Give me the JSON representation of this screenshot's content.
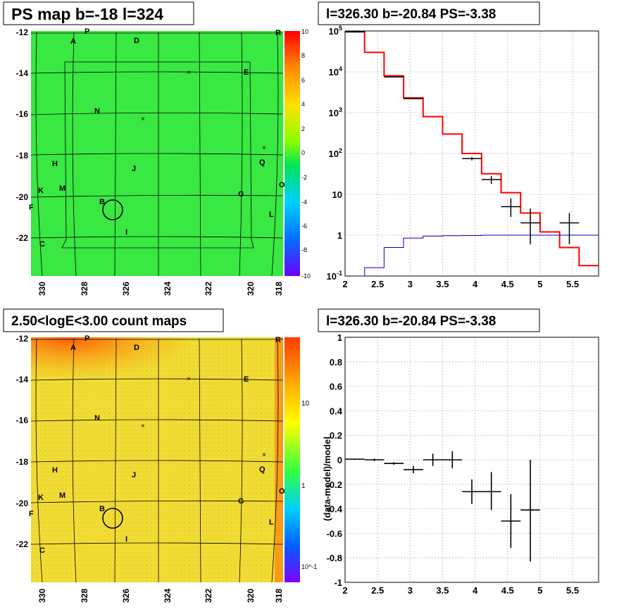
{
  "panels": {
    "top_left_title": "PS map b=-18 l=324",
    "top_right_title": "l=326.30 b=-20.84 PS=-3.38",
    "bottom_left_title": "2.50<logE<3.00 count maps",
    "bottom_right_title": "l=326.30 b=-20.84 PS=-3.38"
  },
  "map": {
    "y_ticks": [
      "-12",
      "-14",
      "-16",
      "-18",
      "-20",
      "-22"
    ],
    "x_ticks": [
      "330",
      "328",
      "326",
      "324",
      "322",
      "320",
      "318"
    ],
    "letters": [
      "A",
      "P",
      "D",
      "R",
      "E",
      "N",
      "H",
      "J",
      "Q",
      "K",
      "M",
      "O",
      "F",
      "B",
      "G",
      "L",
      "I",
      "C"
    ],
    "ps_colorbar_ticks": [
      "10",
      "8",
      "6",
      "4",
      "2",
      "0",
      "-2",
      "-4",
      "-6",
      "-8",
      "-10"
    ],
    "count_colorbar_ticks": [
      "10",
      "1",
      "10^-1"
    ]
  },
  "colors": {
    "ps_map_bg": "#2ee63a",
    "count_map_bg": "#e8e03a",
    "data_hist": "#ff0000",
    "model_hist": "#0000cc"
  },
  "chart_data": [
    {
      "type": "line",
      "title": "l=326.30 b=-20.84 PS=-3.38",
      "xlim": [
        2,
        5.9
      ],
      "ylim": [
        0.1,
        100000
      ],
      "yscale": "log",
      "xticks": [
        "2",
        "2.5",
        "3",
        "3.5",
        "4",
        "4.5",
        "5",
        "5.5"
      ],
      "yticks": [
        "10^-1",
        "1",
        "10",
        "10^2",
        "10^3",
        "10^4",
        "10^5"
      ],
      "grid": true,
      "series": [
        {
          "color": "#ff0000",
          "step_edges": [
            2.0,
            2.3,
            2.6,
            2.9,
            3.2,
            3.5,
            3.8,
            4.1,
            4.4,
            4.7,
            5.0,
            5.3,
            5.6,
            5.9
          ],
          "values": [
            95000,
            30000,
            8000,
            2300,
            800,
            300,
            100,
            32,
            11,
            3.5,
            1.2,
            0.5,
            0.18
          ]
        },
        {
          "color": "#0000cc",
          "step_edges": [
            2.0,
            2.3,
            2.6,
            2.9,
            3.2,
            3.5,
            3.8,
            4.1,
            4.4,
            4.7,
            5.0,
            5.3,
            5.6,
            5.9
          ],
          "values": [
            0.1,
            0.16,
            0.5,
            0.85,
            0.95,
            0.97,
            0.98,
            1.0,
            1.0,
            1.0,
            1.0,
            1.0,
            1.0
          ]
        },
        {
          "color": "#000000",
          "points": [
            {
              "x": 2.15,
              "y": 95000,
              "xerr": 0.15,
              "ylo": 95000,
              "yhi": 95000
            },
            {
              "x": 2.75,
              "y": 7500,
              "xerr": 0.15,
              "ylo": 7500,
              "yhi": 7500
            },
            {
              "x": 3.05,
              "y": 2200,
              "xerr": 0.15,
              "ylo": 2200,
              "yhi": 2200
            },
            {
              "x": 3.95,
              "y": 75,
              "xerr": 0.15,
              "ylo": 68,
              "yhi": 82
            },
            {
              "x": 4.25,
              "y": 23,
              "xerr": 0.15,
              "ylo": 18,
              "yhi": 28
            },
            {
              "x": 4.55,
              "y": 5,
              "xerr": 0.15,
              "ylo": 2.8,
              "yhi": 8
            },
            {
              "x": 4.85,
              "y": 2,
              "xerr": 0.15,
              "ylo": 0.6,
              "yhi": 4.5
            },
            {
              "x": 5.45,
              "y": 2,
              "xerr": 0.15,
              "ylo": 0.6,
              "yhi": 3.5
            }
          ]
        }
      ]
    },
    {
      "type": "scatter",
      "title": "l=326.30 b=-20.84 PS=-3.38",
      "ylabel": "(data-model)/model",
      "xlim": [
        2,
        5.9
      ],
      "ylim": [
        -1,
        1
      ],
      "xticks": [
        "2",
        "2.5",
        "3",
        "3.5",
        "4",
        "4.5",
        "5",
        "5.5"
      ],
      "yticks": [
        "1",
        "0.8",
        "0.6",
        "0.4",
        "0.2",
        "0",
        "-0.2",
        "-0.4",
        "-0.6",
        "-0.8",
        "-1"
      ],
      "grid": true,
      "points": [
        {
          "x": 2.15,
          "y": 0.005,
          "xerr": 0.15,
          "ylo": 0.0,
          "yhi": 0.01
        },
        {
          "x": 2.45,
          "y": 0.0,
          "xerr": 0.15,
          "ylo": -0.01,
          "yhi": 0.01
        },
        {
          "x": 2.75,
          "y": -0.03,
          "xerr": 0.15,
          "ylo": -0.04,
          "yhi": -0.02
        },
        {
          "x": 3.05,
          "y": -0.08,
          "xerr": 0.15,
          "ylo": -0.11,
          "yhi": -0.05
        },
        {
          "x": 3.35,
          "y": 0.0,
          "xerr": 0.15,
          "ylo": -0.05,
          "yhi": 0.05
        },
        {
          "x": 3.65,
          "y": 0.0,
          "xerr": 0.15,
          "ylo": -0.07,
          "yhi": 0.07
        },
        {
          "x": 3.95,
          "y": -0.26,
          "xerr": 0.15,
          "ylo": -0.36,
          "yhi": -0.16
        },
        {
          "x": 4.25,
          "y": -0.26,
          "xerr": 0.15,
          "ylo": -0.41,
          "yhi": -0.1
        },
        {
          "x": 4.55,
          "y": -0.5,
          "xerr": 0.15,
          "ylo": -0.72,
          "yhi": -0.28
        },
        {
          "x": 4.85,
          "y": -0.41,
          "xerr": 0.15,
          "ylo": -0.83,
          "yhi": 0.0
        }
      ]
    }
  ]
}
